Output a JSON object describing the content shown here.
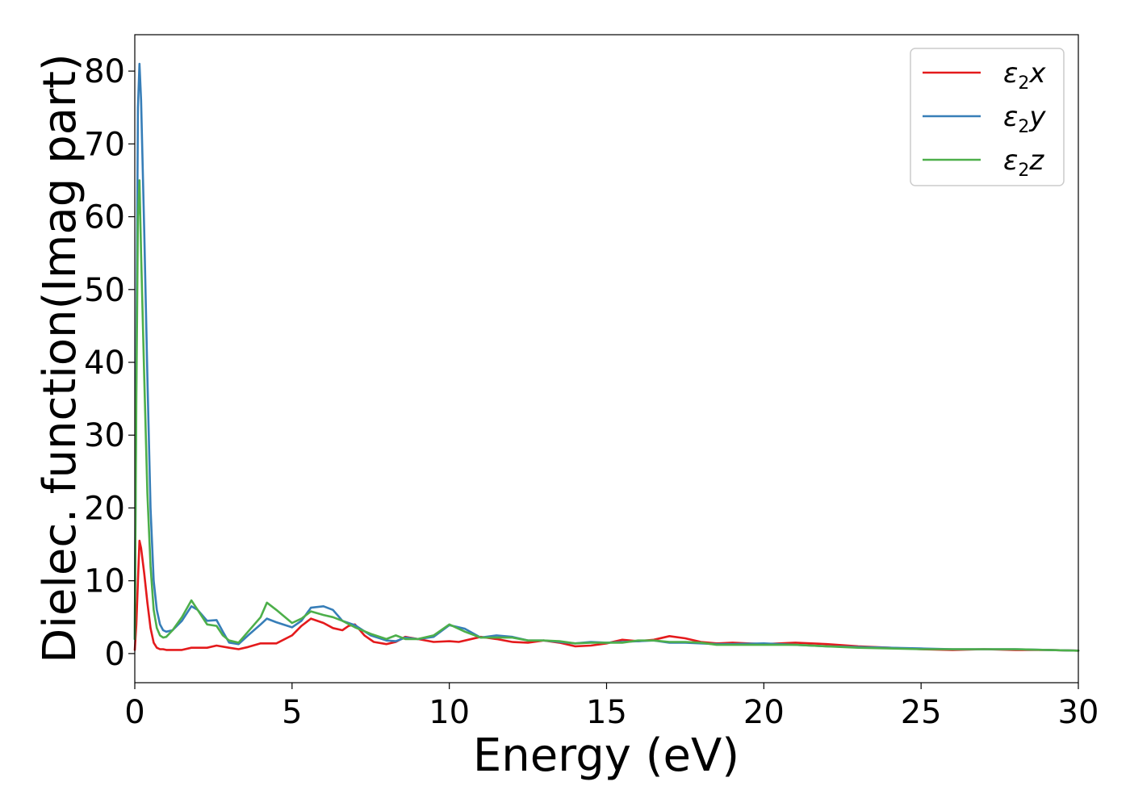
{
  "chart_data": {
    "type": "line",
    "title": "",
    "xlabel": "Energy (eV)",
    "ylabel": "Dielec. function(Imag part)",
    "xlim": [
      0,
      30
    ],
    "ylim": [
      -4,
      85
    ],
    "xticks": [
      0,
      5,
      10,
      15,
      20,
      25,
      30
    ],
    "yticks": [
      0,
      10,
      20,
      30,
      40,
      50,
      60,
      70,
      80
    ],
    "grid": false,
    "legend_position": "top-right",
    "series": [
      {
        "name": "ε₂x",
        "legend": {
          "base": "ε",
          "sub": "2",
          "suffix": "x"
        },
        "color": "#e41a1c",
        "x": [
          0,
          0.05,
          0.1,
          0.15,
          0.2,
          0.3,
          0.4,
          0.5,
          0.6,
          0.7,
          0.8,
          0.9,
          1.0,
          1.2,
          1.5,
          1.8,
          2.0,
          2.3,
          2.6,
          3.0,
          3.3,
          3.6,
          4.0,
          4.5,
          5.0,
          5.3,
          5.6,
          6.0,
          6.3,
          6.6,
          6.8,
          7.0,
          7.3,
          7.6,
          8.0,
          8.3,
          8.6,
          9.0,
          9.5,
          10.0,
          10.3,
          10.6,
          11.0,
          11.5,
          12.0,
          12.5,
          13.0,
          13.5,
          14.0,
          14.5,
          15.0,
          15.5,
          16.0,
          16.5,
          17.0,
          17.5,
          18.0,
          18.5,
          19.0,
          20.0,
          21.0,
          22.0,
          23.0,
          24.0,
          25.0,
          26.0,
          27.0,
          28.0,
          29.0,
          30.0
        ],
        "values": [
          0.5,
          4,
          10,
          15.5,
          14.5,
          11,
          7,
          3.5,
          1.5,
          0.8,
          0.6,
          0.6,
          0.5,
          0.5,
          0.5,
          0.8,
          0.8,
          0.8,
          1.1,
          0.8,
          0.6,
          0.9,
          1.4,
          1.4,
          2.5,
          3.8,
          4.8,
          4.2,
          3.5,
          3.2,
          3.8,
          4.0,
          2.5,
          1.6,
          1.3,
          1.6,
          2.3,
          2.0,
          1.6,
          1.7,
          1.6,
          1.9,
          2.3,
          2.0,
          1.6,
          1.5,
          1.8,
          1.5,
          1.0,
          1.1,
          1.4,
          1.9,
          1.7,
          1.9,
          2.4,
          2.1,
          1.6,
          1.4,
          1.5,
          1.3,
          1.5,
          1.3,
          1.0,
          0.8,
          0.6,
          0.5,
          0.6,
          0.5,
          0.5,
          0.4
        ]
      },
      {
        "name": "ε₂y",
        "legend": {
          "base": "ε",
          "sub": "2",
          "suffix": "y"
        },
        "color": "#377eb8",
        "x": [
          0,
          0.05,
          0.1,
          0.15,
          0.2,
          0.3,
          0.4,
          0.5,
          0.6,
          0.7,
          0.8,
          0.9,
          1.0,
          1.2,
          1.5,
          1.8,
          2.0,
          2.3,
          2.6,
          2.8,
          3.0,
          3.3,
          3.6,
          4.0,
          4.2,
          4.5,
          5.0,
          5.3,
          5.6,
          6.0,
          6.3,
          6.6,
          7.0,
          7.5,
          8.0,
          8.3,
          8.6,
          9.0,
          9.5,
          10.0,
          10.5,
          11.0,
          11.5,
          12.0,
          12.5,
          13.0,
          13.5,
          14.0,
          14.5,
          15.0,
          15.5,
          16.0,
          16.5,
          17.0,
          17.5,
          18.0,
          18.5,
          19.0,
          20.0,
          21.0,
          22.0,
          23.0,
          24.0,
          25.0,
          26.0,
          27.0,
          28.0,
          29.0,
          30.0
        ],
        "values": [
          2,
          40,
          75,
          81,
          76,
          58,
          38,
          20,
          10,
          6,
          4,
          3.2,
          3.0,
          3.2,
          4.5,
          6.5,
          6.0,
          4.5,
          4.6,
          3.0,
          1.5,
          1.3,
          2.5,
          4.0,
          4.8,
          4.3,
          3.6,
          4.5,
          6.3,
          6.5,
          6.0,
          4.5,
          3.9,
          2.5,
          1.8,
          1.7,
          2.2,
          2.0,
          2.3,
          3.9,
          3.4,
          2.2,
          2.5,
          2.3,
          1.8,
          1.8,
          1.6,
          1.4,
          1.6,
          1.5,
          1.6,
          1.7,
          1.8,
          1.5,
          1.5,
          1.4,
          1.3,
          1.3,
          1.4,
          1.2,
          1.0,
          0.9,
          0.8,
          0.7,
          0.6,
          0.6,
          0.6,
          0.5,
          0.4
        ]
      },
      {
        "name": "ε₂z",
        "legend": {
          "base": "ε",
          "sub": "2",
          "suffix": "z"
        },
        "color": "#4daf4a",
        "x": [
          0,
          0.05,
          0.1,
          0.15,
          0.2,
          0.3,
          0.4,
          0.5,
          0.6,
          0.7,
          0.8,
          0.9,
          1.0,
          1.2,
          1.5,
          1.8,
          2.0,
          2.3,
          2.6,
          2.8,
          3.0,
          3.3,
          3.6,
          4.0,
          4.2,
          4.5,
          5.0,
          5.3,
          5.6,
          6.0,
          6.3,
          6.6,
          7.0,
          7.5,
          8.0,
          8.3,
          8.6,
          9.0,
          9.5,
          10.0,
          10.5,
          11.0,
          11.5,
          12.0,
          12.5,
          13.0,
          13.5,
          14.0,
          14.5,
          15.0,
          15.5,
          16.0,
          16.5,
          17.0,
          17.5,
          18.0,
          18.5,
          19.0,
          20.0,
          21.0,
          22.0,
          23.0,
          24.0,
          25.0,
          26.0,
          27.0,
          28.0,
          29.0,
          30.0
        ],
        "values": [
          2,
          35,
          60,
          65,
          55,
          38,
          22,
          12,
          6,
          3.5,
          2.5,
          2.2,
          2.3,
          3.2,
          5.0,
          7.3,
          6.0,
          4.0,
          3.8,
          2.5,
          1.8,
          1.5,
          3.0,
          5.0,
          7.0,
          6.0,
          4.2,
          4.8,
          5.8,
          5.3,
          5.0,
          4.5,
          3.6,
          2.7,
          2.0,
          2.5,
          2.0,
          2.0,
          2.5,
          4.0,
          3.0,
          2.2,
          2.2,
          2.2,
          1.8,
          1.8,
          1.7,
          1.4,
          1.5,
          1.5,
          1.5,
          1.8,
          1.8,
          1.6,
          1.6,
          1.5,
          1.2,
          1.2,
          1.2,
          1.2,
          1.0,
          0.8,
          0.7,
          0.6,
          0.6,
          0.6,
          0.6,
          0.5,
          0.4
        ]
      }
    ]
  }
}
